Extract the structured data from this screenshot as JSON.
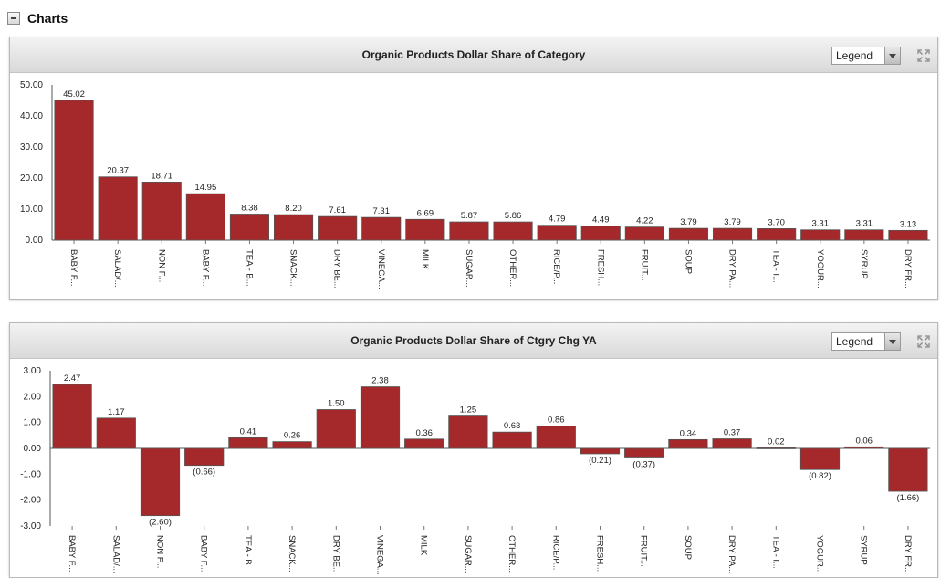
{
  "section": {
    "title": "Charts"
  },
  "legend_label": "Legend",
  "chart_data": [
    {
      "type": "bar",
      "title": "Organic Products Dollar Share of Category",
      "xlabel": "",
      "ylabel": "",
      "ylim": [
        0,
        50
      ],
      "yticks": [
        "50.00",
        "40.00",
        "30.00",
        "20.00",
        "10.00",
        "0.00"
      ],
      "ytick_values": [
        50,
        40,
        30,
        20,
        10,
        0
      ],
      "categories": [
        "BABY F...",
        "SALAD/...",
        "NON F...",
        "BABY F...",
        "TEA - B...",
        "SNACK...",
        "DRY BE...",
        "VINEGA...",
        "MILK",
        "SUGAR...",
        "OTHER...",
        "RICE/P...",
        "FRESH...",
        "FRUIT...",
        "SOUP",
        "DRY PA...",
        "TEA - I...",
        "YOGUR...",
        "SYRUP",
        "DRY FR..."
      ],
      "values": [
        45.02,
        20.37,
        18.71,
        14.95,
        8.38,
        8.2,
        7.61,
        7.31,
        6.69,
        5.87,
        5.86,
        4.79,
        4.49,
        4.22,
        3.79,
        3.79,
        3.7,
        3.31,
        3.31,
        3.13
      ],
      "value_labels": [
        "45.02",
        "20.37",
        "18.71",
        "14.95",
        "8.38",
        "8.20",
        "7.61",
        "7.31",
        "6.69",
        "5.87",
        "5.86",
        "4.79",
        "4.49",
        "4.22",
        "3.79",
        "3.79",
        "3.70",
        "3.31",
        "3.31",
        "3.13"
      ],
      "bar_color": "#a5282a",
      "legend": "hidden"
    },
    {
      "type": "bar",
      "title": "Organic Products Dollar Share of Ctgry Chg YA",
      "xlabel": "",
      "ylabel": "",
      "ylim": [
        -3,
        3
      ],
      "yticks": [
        "3.00",
        "2.00",
        "1.00",
        "0.00",
        "-1.00",
        "-2.00",
        "-3.00"
      ],
      "ytick_values": [
        3,
        2,
        1,
        0,
        -1,
        -2,
        -3
      ],
      "categories": [
        "BABY F...",
        "SALAD/...",
        "NON F...",
        "BABY F...",
        "TEA - B...",
        "SNACK...",
        "DRY BE...",
        "VINEGA...",
        "MILK",
        "SUGAR...",
        "OTHER...",
        "RICE/P...",
        "FRESH...",
        "FRUIT...",
        "SOUP",
        "DRY PA...",
        "TEA - I...",
        "YOGUR...",
        "SYRUP",
        "DRY FR..."
      ],
      "values": [
        2.47,
        1.17,
        -2.6,
        -0.66,
        0.41,
        0.26,
        1.5,
        2.38,
        0.36,
        1.25,
        0.63,
        0.86,
        -0.21,
        -0.37,
        0.34,
        0.37,
        0.02,
        -0.82,
        0.06,
        -1.66
      ],
      "value_labels": [
        "2.47",
        "1.17",
        "(2.60)",
        "(0.66)",
        "0.41",
        "0.26",
        "1.50",
        "2.38",
        "0.36",
        "1.25",
        "0.63",
        "0.86",
        "(0.21)",
        "(0.37)",
        "0.34",
        "0.37",
        "0.02",
        "(0.82)",
        "0.06",
        "(1.66)"
      ],
      "bar_color": "#a5282a",
      "legend": "hidden"
    }
  ]
}
